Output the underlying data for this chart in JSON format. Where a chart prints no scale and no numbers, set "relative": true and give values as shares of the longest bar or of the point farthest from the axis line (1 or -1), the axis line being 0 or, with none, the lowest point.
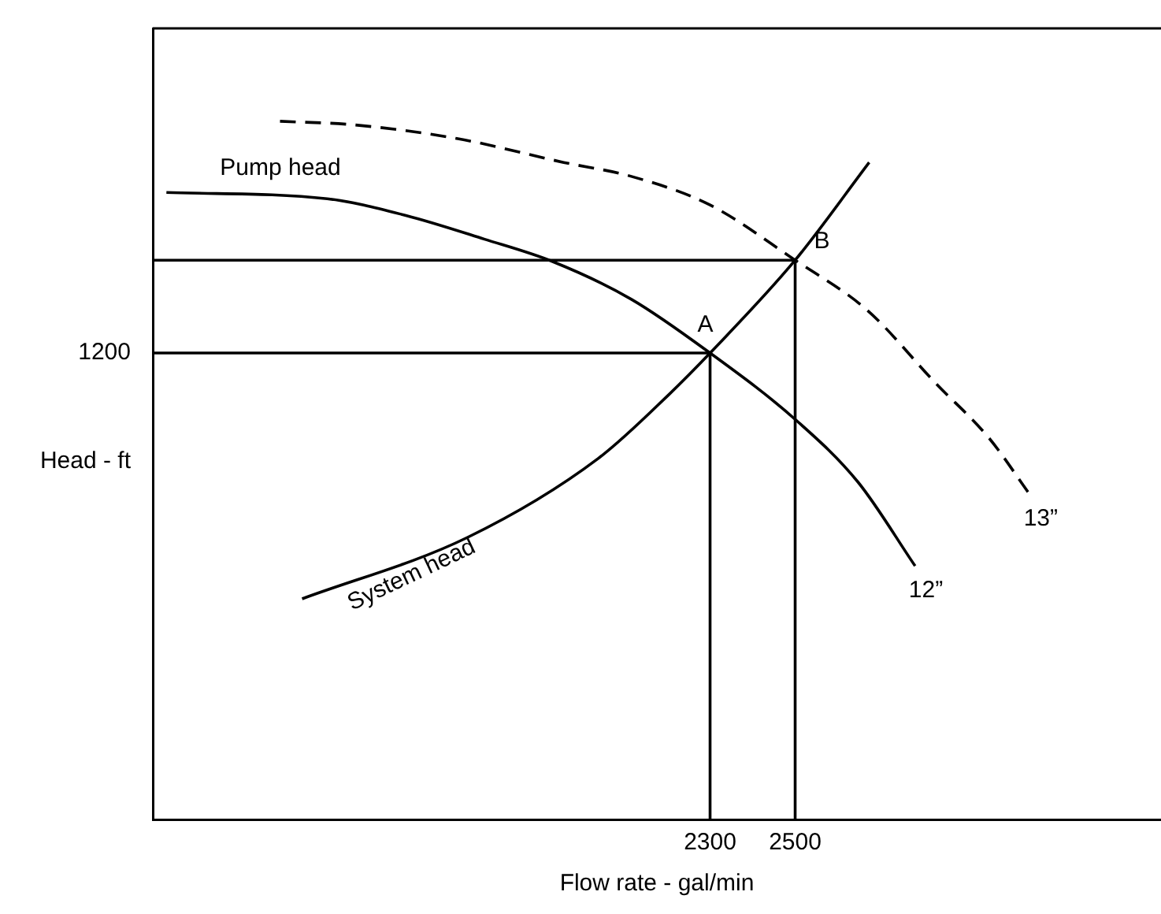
{
  "chart_data": {
    "type": "line",
    "xlabel": "Flow rate - gal/min",
    "ylabel": "Head - ft",
    "relative": true,
    "xlim": [
      990,
      3360
    ],
    "xticks": [
      2300,
      2500
    ],
    "series": [
      {
        "name": "12”",
        "color": "#000000",
        "x": [
          1022,
          1400,
          1585,
          1770,
          1930,
          2115,
          2300,
          2500,
          2648,
          2782
        ],
        "values": [
          0.898,
          0.889,
          0.865,
          0.831,
          0.799,
          0.745,
          0.668,
          0.573,
          0.483,
          0.363
        ]
      },
      {
        "name": "13”",
        "color": "#000000",
        "line_style": "dashed",
        "x": [
          1289,
          1459,
          1707,
          1956,
          2115,
          2300,
          2500,
          2670,
          2830,
          2956,
          3052
        ],
        "values": [
          1,
          0.995,
          0.975,
          0.941,
          0.921,
          0.88,
          0.801,
          0.729,
          0.625,
          0.546,
          0.465
        ]
      },
      {
        "name": "System head",
        "color": "#000000",
        "x": [
          1341,
          1730,
          2037,
          2204,
          2300,
          2500,
          2674
        ],
        "values": [
          0.316,
          0.404,
          0.517,
          0.609,
          0.668,
          0.801,
          0.941
        ]
      },
      {
        "color": "#000000",
        "x": [
          990,
          2300,
          2300
        ],
        "values": [
          0.668,
          0.668,
          0
        ]
      },
      {
        "color": "#000000",
        "x": [
          990,
          2500,
          2500
        ],
        "values": [
          0.801,
          0.801,
          0
        ]
      }
    ],
    "annotations": [
      "Pump head",
      {
        "text": "A",
        "x": 2300,
        "y": 0.668
      },
      {
        "text": "B",
        "x": 2500,
        "y": 0.801
      },
      "1200"
    ],
    "legend": false,
    "marker": "none",
    "line_style": "solid",
    "grid": false
  }
}
